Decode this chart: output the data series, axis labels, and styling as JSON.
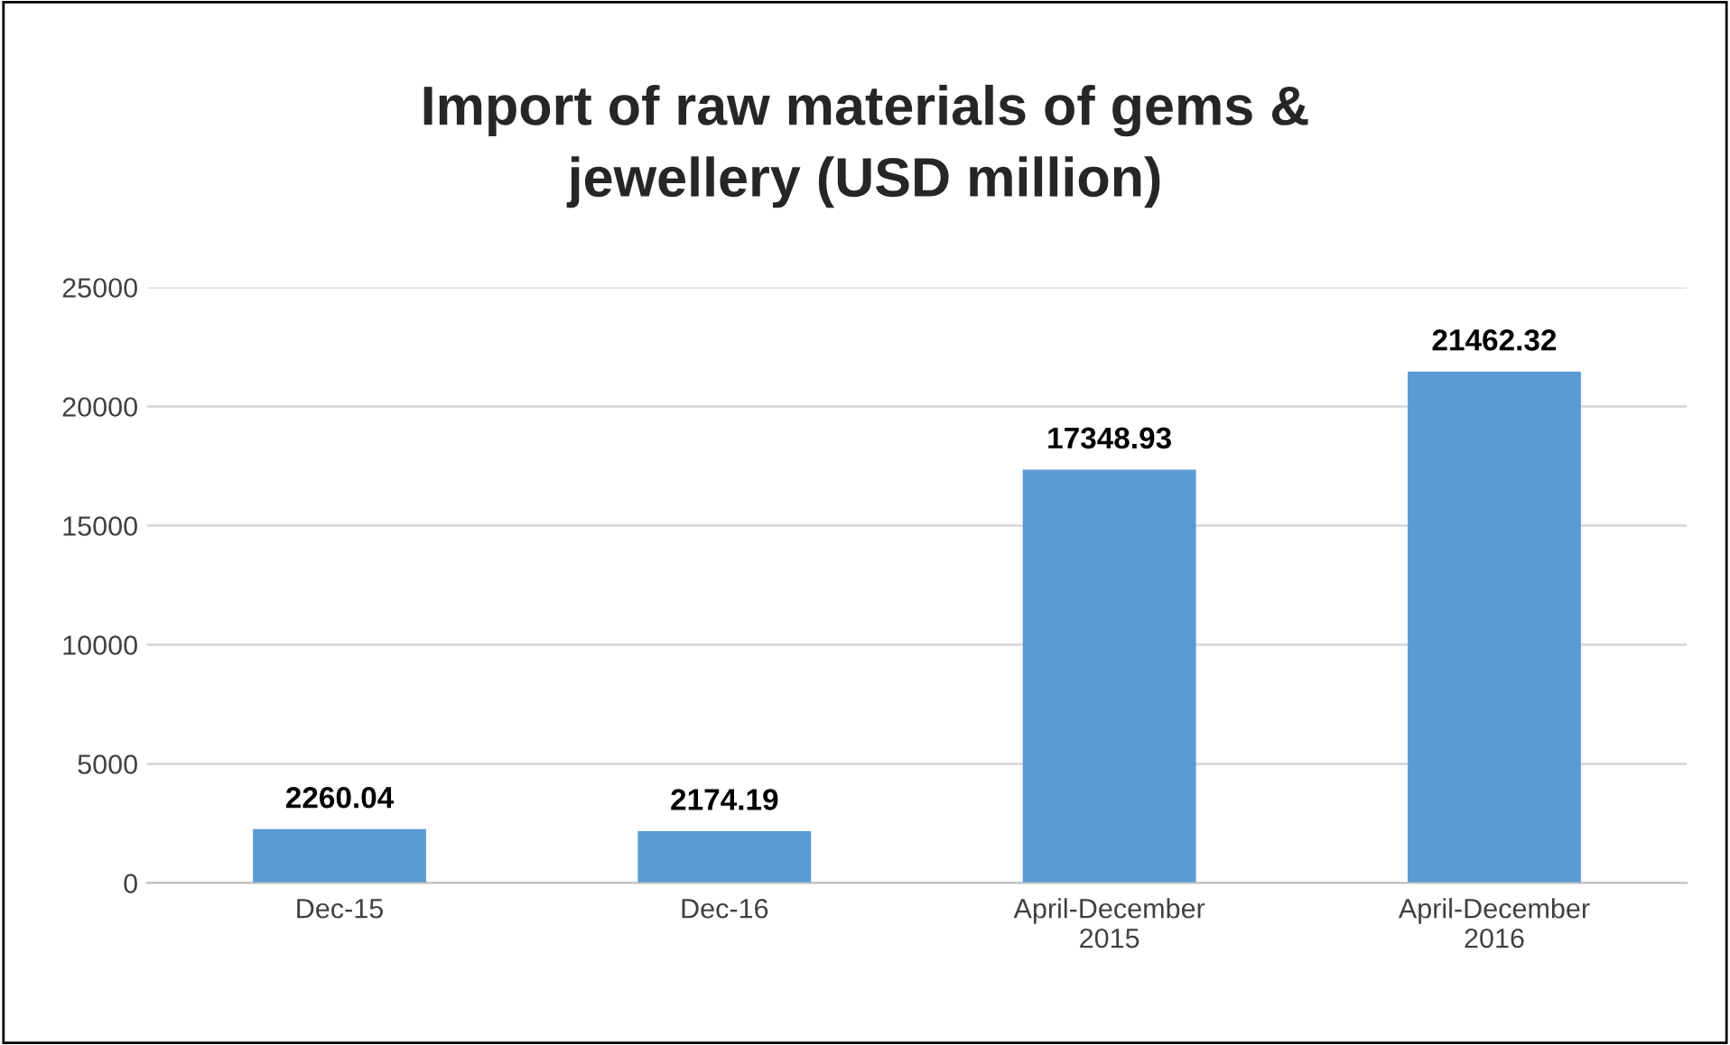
{
  "chart_data": {
    "type": "bar",
    "title": "Import of raw materials of gems &\njewellery (USD million)",
    "categories": [
      "Dec-15",
      "Dec-16",
      "April-December\n2015",
      "April-December\n2016"
    ],
    "values": [
      2260.04,
      2174.19,
      17348.93,
      21462.32
    ],
    "color": "#5b9bd5",
    "ylim": [
      0,
      25000
    ],
    "yticks": [
      0,
      5000,
      10000,
      15000,
      20000,
      25000
    ],
    "grid": "y",
    "data_labels": true
  }
}
